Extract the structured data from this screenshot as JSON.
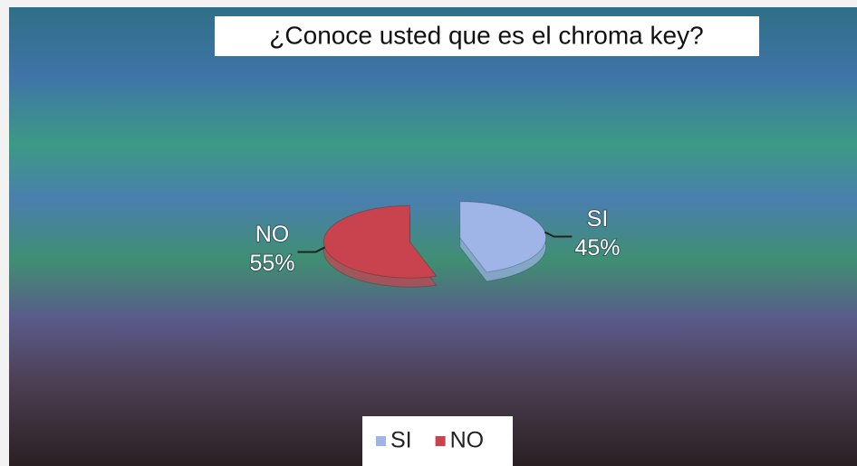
{
  "chart_data": {
    "type": "pie",
    "title": "¿Conoce usted que es el chroma key?",
    "categories": [
      "SI",
      "NO"
    ],
    "values": [
      45,
      55
    ],
    "value_labels": [
      "45%",
      "55%"
    ],
    "colors": [
      "#9fb5e8",
      "#c9434e"
    ],
    "legend": "bottom"
  }
}
